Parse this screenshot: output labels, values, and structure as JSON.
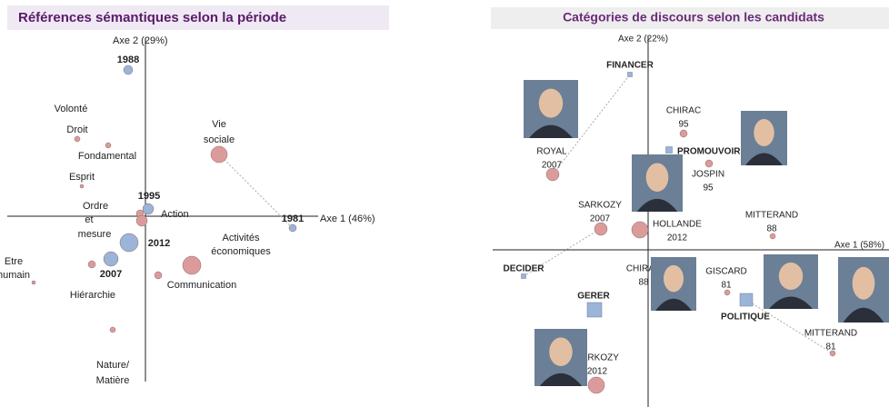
{
  "left": {
    "title": "Références sémantiques selon la période",
    "axis_y": "Axe 2 (29%)",
    "axis_x": "Axe 1 (46%)",
    "labels": [
      "1988",
      "Volonté",
      "Droit",
      "Fondamental",
      "Esprit",
      "Vie",
      "sociale",
      "Ordre",
      "et",
      "mesure",
      "1995",
      "Action",
      "1981",
      "Activités",
      "économiques",
      "2012",
      "Etre",
      "humain",
      "2007",
      "Hiérarchie",
      "Communication",
      "Nature/",
      "Matière"
    ]
  },
  "right": {
    "title": "Catégories de discours selon les candidats",
    "axis_y": "Axe 2 (22%)",
    "axis_x": "Axe 1 (58%)",
    "labels": [
      "FINANCER",
      "ROYAL",
      "2007",
      "CHIRAC",
      "95",
      "PROMOUVOIR",
      "JOSPIN",
      "95",
      "SARKOZY",
      "2007",
      "HOLLANDE",
      "2012",
      "MITTERAND",
      "88",
      "DECIDER",
      "CHIRAC",
      "88",
      "GISCARD",
      "81",
      "POLITIQUE",
      "MITTERAND",
      "81",
      "GERER",
      "SARKOZY",
      "2012"
    ]
  }
}
